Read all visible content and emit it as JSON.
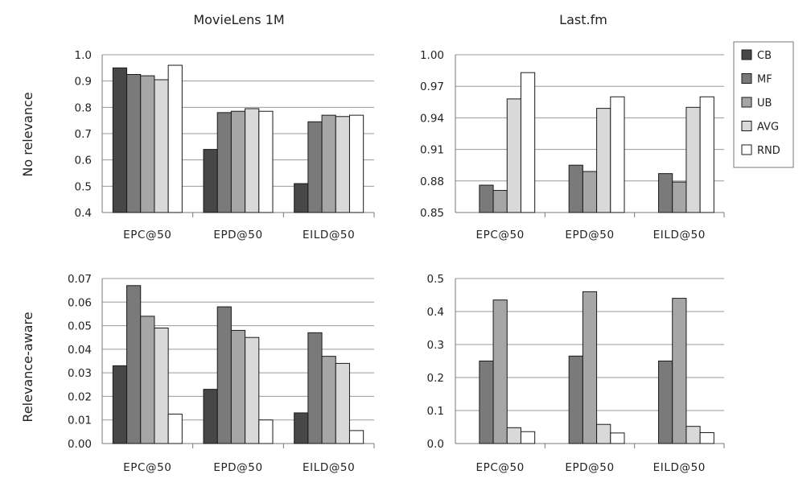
{
  "columns": [
    "MovieLens 1M",
    "Last.fm"
  ],
  "rows": [
    "No relevance",
    "Relevance-aware"
  ],
  "legend": [
    {
      "name": "CB",
      "color": "#474747"
    },
    {
      "name": "MF",
      "color": "#7a7a7a"
    },
    {
      "name": "UB",
      "color": "#a6a6a6"
    },
    {
      "name": "AVG",
      "color": "#d9d9d9"
    },
    {
      "name": "RND",
      "color": "#ffffff"
    }
  ],
  "chart_data": [
    {
      "type": "bar",
      "title": "MovieLens 1M",
      "ylabel": "No relevance",
      "categories": [
        "EPC@50",
        "EPD@50",
        "EILD@50"
      ],
      "ylim": [
        0.4,
        1.0
      ],
      "yticks": [
        "0.4",
        "0.5",
        "0.6",
        "0.7",
        "0.8",
        "0.9",
        "1.0"
      ],
      "series": [
        {
          "name": "CB",
          "values": [
            0.95,
            0.64,
            0.51
          ]
        },
        {
          "name": "MF",
          "values": [
            0.925,
            0.78,
            0.745
          ]
        },
        {
          "name": "UB",
          "values": [
            0.92,
            0.785,
            0.77
          ]
        },
        {
          "name": "AVG",
          "values": [
            0.905,
            0.795,
            0.765
          ]
        },
        {
          "name": "RND",
          "values": [
            0.96,
            0.785,
            0.77
          ]
        }
      ]
    },
    {
      "type": "bar",
      "title": "Last.fm",
      "ylabel": "No relevance",
      "categories": [
        "EPC@50",
        "EPD@50",
        "EILD@50"
      ],
      "ylim": [
        0.85,
        1.0
      ],
      "yticks": [
        "0.85",
        "0.88",
        "0.91",
        "0.94",
        "0.97",
        "1.00"
      ],
      "series": [
        {
          "name": "CB",
          "values": [
            null,
            null,
            null
          ]
        },
        {
          "name": "MF",
          "values": [
            0.876,
            0.895,
            0.887
          ]
        },
        {
          "name": "UB",
          "values": [
            0.871,
            0.889,
            0.879
          ]
        },
        {
          "name": "AVG",
          "values": [
            0.958,
            0.949,
            0.95
          ]
        },
        {
          "name": "RND",
          "values": [
            0.983,
            0.96,
            0.96
          ]
        }
      ]
    },
    {
      "type": "bar",
      "title": "MovieLens 1M",
      "ylabel": "Relevance-aware",
      "categories": [
        "EPC@50",
        "EPD@50",
        "EILD@50"
      ],
      "ylim": [
        0.0,
        0.07
      ],
      "yticks": [
        "0.00",
        "0.01",
        "0.02",
        "0.03",
        "0.04",
        "0.05",
        "0.06",
        "0.07"
      ],
      "series": [
        {
          "name": "CB",
          "values": [
            0.033,
            0.023,
            0.013
          ]
        },
        {
          "name": "MF",
          "values": [
            0.067,
            0.058,
            0.047
          ]
        },
        {
          "name": "UB",
          "values": [
            0.054,
            0.048,
            0.037
          ]
        },
        {
          "name": "AVG",
          "values": [
            0.049,
            0.045,
            0.034
          ]
        },
        {
          "name": "RND",
          "values": [
            0.0125,
            0.01,
            0.0055
          ]
        }
      ]
    },
    {
      "type": "bar",
      "title": "Last.fm",
      "ylabel": "Relevance-aware",
      "categories": [
        "EPC@50",
        "EPD@50",
        "EILD@50"
      ],
      "ylim": [
        0.0,
        0.5
      ],
      "yticks": [
        "0.0",
        "0.1",
        "0.2",
        "0.3",
        "0.4",
        "0.5"
      ],
      "series": [
        {
          "name": "CB",
          "values": [
            null,
            null,
            null
          ]
        },
        {
          "name": "MF",
          "values": [
            0.25,
            0.265,
            0.25
          ]
        },
        {
          "name": "UB",
          "values": [
            0.435,
            0.46,
            0.44
          ]
        },
        {
          "name": "AVG",
          "values": [
            0.048,
            0.058,
            0.052
          ]
        },
        {
          "name": "RND",
          "values": [
            0.036,
            0.032,
            0.033
          ]
        }
      ]
    }
  ]
}
